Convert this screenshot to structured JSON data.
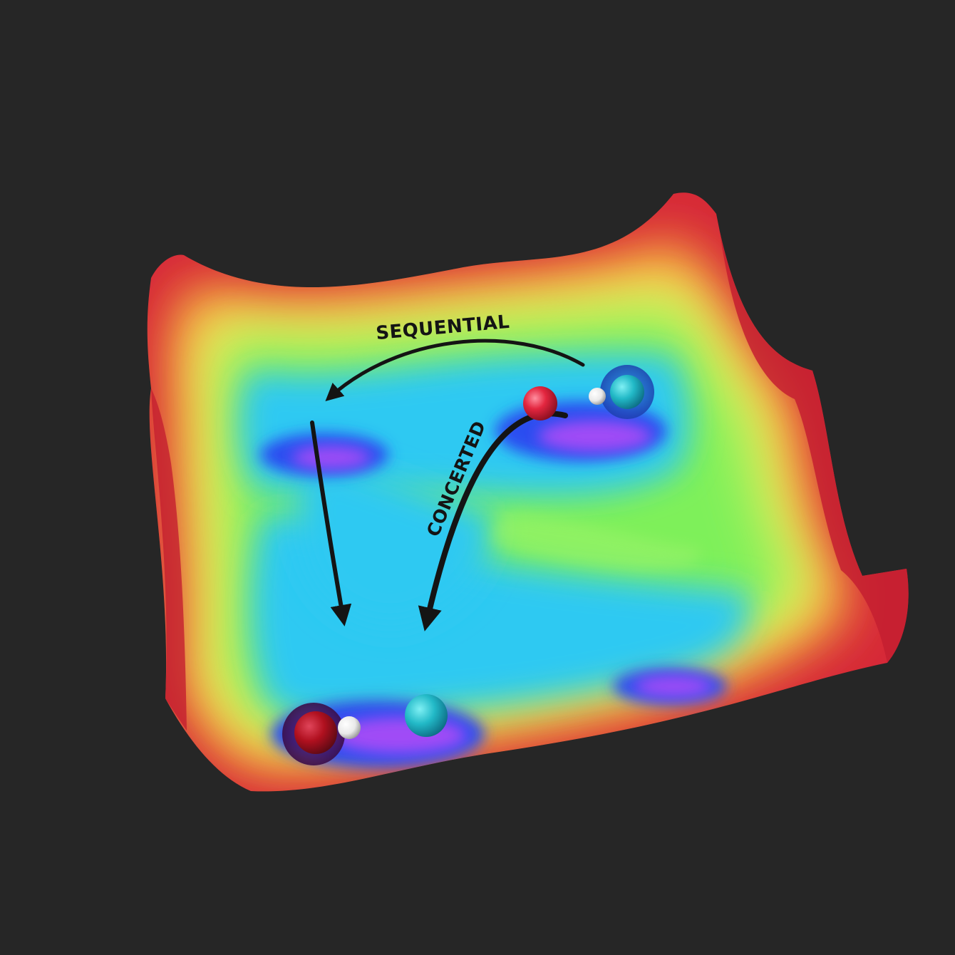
{
  "labels": {
    "sequential": "SEQUENTIAL",
    "concerted": "CONCERTED"
  },
  "colors": {
    "background": "#262626",
    "high_energy": "#d62838",
    "ridge_orange": "#f7a33a",
    "ridge_yellow": "#f4ef5a",
    "mid_green": "#7ef05a",
    "low_cyan": "#2fc9f2",
    "well_blue": "#2a4df0",
    "well_purple": "#a04cf6",
    "oxygen_atom": "#e3263f",
    "hydrogen_atom": "#f2f2f2",
    "partner_atom": "#22b9c7",
    "arrow": "#141414"
  },
  "diagram": {
    "type": "potential-energy-surface",
    "minima": [
      "reactant-well",
      "intermediate-well",
      "product-well",
      "side-well"
    ],
    "pathways": [
      "sequential",
      "concerted"
    ]
  }
}
